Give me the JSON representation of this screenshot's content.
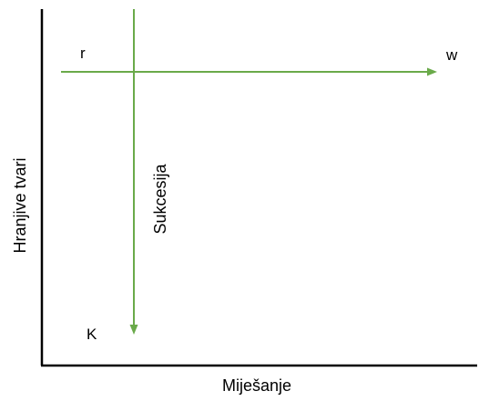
{
  "axes": {
    "x_label": "Miješanje",
    "y_label": "Hranjive tvari"
  },
  "arrows": {
    "horizontal": {
      "start_label": "r",
      "end_label": "w"
    },
    "vertical": {
      "end_label": "K",
      "label": "Sukcesija"
    }
  },
  "colors": {
    "arrow": "#6aaa4a",
    "axis": "#000000",
    "background": "#ffffff"
  }
}
